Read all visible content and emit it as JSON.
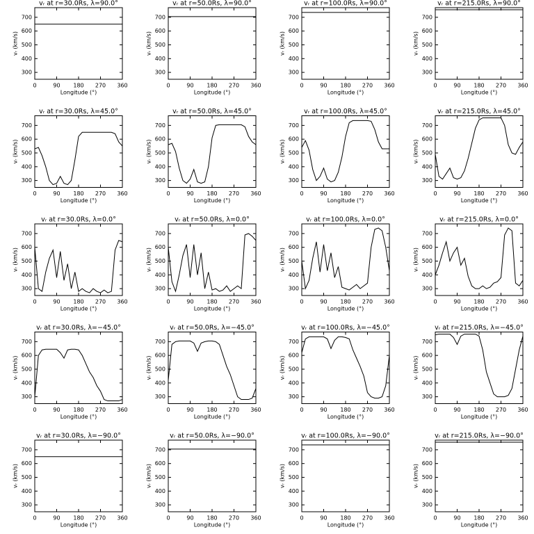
{
  "chart_data": [
    {
      "type": "line",
      "title": "vᵣ at r=30.0Rs, λ=90.0°",
      "xlabel": "Longitude (°)",
      "ylabel": "vᵣ (km/s)",
      "x": [
        0,
        360
      ],
      "values": [
        650,
        650
      ],
      "color": "#000000",
      "xlim": [
        0,
        360
      ],
      "ylim": [
        250,
        770
      ],
      "xticks": [
        0,
        90,
        180,
        270,
        360
      ],
      "yticks": [
        300,
        400,
        500,
        600,
        700
      ]
    },
    {
      "type": "line",
      "title": "vᵣ at r=50.0Rs, λ=90.0°",
      "xlabel": "Longitude (°)",
      "ylabel": "vᵣ (km/s)",
      "x": [
        0,
        360
      ],
      "values": [
        705,
        705
      ],
      "color": "#000000",
      "xlim": [
        0,
        360
      ],
      "ylim": [
        250,
        770
      ],
      "xticks": [
        0,
        90,
        180,
        270,
        360
      ],
      "yticks": [
        300,
        400,
        500,
        600,
        700
      ]
    },
    {
      "type": "line",
      "title": "vᵣ at r=100.0Rs, λ=90.0°",
      "xlabel": "Longitude (°)",
      "ylabel": "vᵣ (km/s)",
      "x": [
        0,
        360
      ],
      "values": [
        735,
        735
      ],
      "color": "#000000",
      "xlim": [
        0,
        360
      ],
      "ylim": [
        250,
        770
      ],
      "xticks": [
        0,
        90,
        180,
        270,
        360
      ],
      "yticks": [
        300,
        400,
        500,
        600,
        700
      ]
    },
    {
      "type": "line",
      "title": "vᵣ at r=215.0Rs, λ=90.0°",
      "xlabel": "Longitude (°)",
      "ylabel": "vᵣ (km/s)",
      "x": [
        0,
        360
      ],
      "values": [
        755,
        755
      ],
      "color": "#000000",
      "xlim": [
        0,
        360
      ],
      "ylim": [
        250,
        770
      ],
      "xticks": [
        0,
        90,
        180,
        270,
        360
      ],
      "yticks": [
        300,
        400,
        500,
        600,
        700
      ]
    },
    {
      "type": "line",
      "title": "vᵣ at r=30.0Rs, λ=45.0°",
      "xlabel": "Longitude (°)",
      "ylabel": "vᵣ (km/s)",
      "x": [
        0,
        15,
        30,
        45,
        60,
        75,
        90,
        105,
        120,
        135,
        150,
        165,
        180,
        195,
        210,
        225,
        240,
        255,
        270,
        285,
        300,
        315,
        330,
        345,
        360
      ],
      "values": [
        530,
        540,
        480,
        400,
        300,
        270,
        280,
        330,
        280,
        270,
        300,
        450,
        620,
        650,
        650,
        650,
        650,
        650,
        650,
        650,
        650,
        650,
        640,
        580,
        550
      ],
      "color": "#000000",
      "xlim": [
        0,
        360
      ],
      "ylim": [
        250,
        770
      ],
      "xticks": [
        0,
        90,
        180,
        270,
        360
      ],
      "yticks": [
        300,
        400,
        500,
        600,
        700
      ]
    },
    {
      "type": "line",
      "title": "vᵣ at r=50.0Rs, λ=45.0°",
      "xlabel": "Longitude (°)",
      "ylabel": "vᵣ (km/s)",
      "x": [
        0,
        15,
        30,
        45,
        60,
        75,
        90,
        105,
        120,
        135,
        150,
        165,
        180,
        195,
        210,
        225,
        240,
        255,
        270,
        285,
        300,
        315,
        330,
        345,
        360
      ],
      "values": [
        560,
        570,
        510,
        390,
        300,
        280,
        310,
        380,
        290,
        280,
        290,
        400,
        610,
        700,
        705,
        705,
        705,
        705,
        705,
        705,
        705,
        690,
        620,
        580,
        560
      ],
      "color": "#000000",
      "xlim": [
        0,
        360
      ],
      "ylim": [
        250,
        770
      ],
      "xticks": [
        0,
        90,
        180,
        270,
        360
      ],
      "yticks": [
        300,
        400,
        500,
        600,
        700
      ]
    },
    {
      "type": "line",
      "title": "vᵣ at r=100.0Rs, λ=45.0°",
      "xlabel": "Longitude (°)",
      "ylabel": "vᵣ (km/s)",
      "x": [
        0,
        15,
        30,
        45,
        60,
        75,
        90,
        105,
        120,
        135,
        150,
        165,
        180,
        195,
        210,
        225,
        240,
        255,
        270,
        285,
        300,
        315,
        330,
        345,
        360
      ],
      "values": [
        540,
        590,
        520,
        380,
        300,
        330,
        390,
        310,
        290,
        300,
        360,
        470,
        620,
        720,
        735,
        735,
        735,
        735,
        735,
        730,
        670,
        580,
        530,
        530,
        530
      ],
      "color": "#000000",
      "xlim": [
        0,
        360
      ],
      "ylim": [
        250,
        770
      ],
      "xticks": [
        0,
        90,
        180,
        270,
        360
      ],
      "yticks": [
        300,
        400,
        500,
        600,
        700
      ]
    },
    {
      "type": "line",
      "title": "vᵣ at r=215.0Rs, λ=45.0°",
      "xlabel": "Longitude (°)",
      "ylabel": "vᵣ (km/s)",
      "x": [
        0,
        15,
        30,
        45,
        60,
        75,
        90,
        105,
        120,
        135,
        150,
        165,
        180,
        195,
        210,
        225,
        240,
        255,
        270,
        285,
        300,
        315,
        330,
        345,
        360
      ],
      "values": [
        490,
        330,
        310,
        350,
        390,
        320,
        310,
        320,
        370,
        460,
        570,
        680,
        740,
        755,
        755,
        755,
        755,
        755,
        755,
        700,
        560,
        500,
        490,
        540,
        580
      ],
      "color": "#000000",
      "xlim": [
        0,
        360
      ],
      "ylim": [
        250,
        770
      ],
      "xticks": [
        0,
        90,
        180,
        270,
        360
      ],
      "yticks": [
        300,
        400,
        500,
        600,
        700
      ]
    },
    {
      "type": "line",
      "title": "vᵣ at r=30.0Rs, λ=0.0°",
      "xlabel": "Longitude (°)",
      "ylabel": "vᵣ (km/s)",
      "x": [
        0,
        15,
        30,
        45,
        60,
        75,
        90,
        105,
        120,
        135,
        150,
        165,
        180,
        195,
        210,
        225,
        240,
        255,
        270,
        285,
        300,
        315,
        330,
        345,
        360
      ],
      "values": [
        600,
        300,
        280,
        420,
        520,
        580,
        380,
        570,
        360,
        480,
        300,
        420,
        280,
        300,
        280,
        270,
        300,
        280,
        270,
        290,
        270,
        280,
        580,
        650,
        640
      ],
      "color": "#000000",
      "xlim": [
        0,
        360
      ],
      "ylim": [
        250,
        770
      ],
      "xticks": [
        0,
        90,
        180,
        270,
        360
      ],
      "yticks": [
        300,
        400,
        500,
        600,
        700
      ]
    },
    {
      "type": "line",
      "title": "vᵣ at r=50.0Rs, λ=0.0°",
      "xlabel": "Longitude (°)",
      "ylabel": "vᵣ (km/s)",
      "x": [
        0,
        15,
        30,
        45,
        60,
        75,
        90,
        105,
        120,
        135,
        150,
        165,
        180,
        195,
        210,
        225,
        240,
        255,
        270,
        285,
        300,
        315,
        330,
        345,
        360
      ],
      "values": [
        600,
        350,
        280,
        400,
        540,
        620,
        380,
        620,
        400,
        560,
        300,
        420,
        290,
        300,
        280,
        290,
        320,
        280,
        300,
        320,
        300,
        690,
        700,
        680,
        650
      ],
      "color": "#000000",
      "xlim": [
        0,
        360
      ],
      "ylim": [
        250,
        770
      ],
      "xticks": [
        0,
        90,
        180,
        270,
        360
      ],
      "yticks": [
        300,
        400,
        500,
        600,
        700
      ]
    },
    {
      "type": "line",
      "title": "vᵣ at r=100.0Rs, λ=0.0°",
      "xlabel": "Longitude (°)",
      "ylabel": "vᵣ (km/s)",
      "x": [
        0,
        15,
        30,
        45,
        60,
        75,
        90,
        105,
        120,
        135,
        150,
        165,
        180,
        195,
        210,
        225,
        240,
        255,
        270,
        285,
        300,
        315,
        330,
        345,
        360
      ],
      "values": [
        500,
        300,
        360,
        520,
        640,
        420,
        620,
        430,
        560,
        380,
        460,
        310,
        300,
        290,
        310,
        330,
        300,
        320,
        340,
        600,
        730,
        740,
        720,
        600,
        430
      ],
      "color": "#000000",
      "xlim": [
        0,
        360
      ],
      "ylim": [
        250,
        770
      ],
      "xticks": [
        0,
        90,
        180,
        270,
        360
      ],
      "yticks": [
        300,
        400,
        500,
        600,
        700
      ]
    },
    {
      "type": "line",
      "title": "vᵣ at r=215.0Rs, λ=0.0°",
      "xlabel": "Longitude (°)",
      "ylabel": "vᵣ (km/s)",
      "x": [
        0,
        15,
        30,
        45,
        60,
        75,
        90,
        105,
        120,
        135,
        150,
        165,
        180,
        195,
        210,
        225,
        240,
        255,
        270,
        285,
        300,
        315,
        330,
        345,
        360
      ],
      "values": [
        400,
        470,
        560,
        640,
        500,
        560,
        600,
        470,
        520,
        390,
        320,
        300,
        300,
        320,
        300,
        310,
        340,
        350,
        380,
        690,
        740,
        720,
        340,
        320,
        360
      ],
      "color": "#000000",
      "xlim": [
        0,
        360
      ],
      "ylim": [
        250,
        770
      ],
      "xticks": [
        0,
        90,
        180,
        270,
        360
      ],
      "yticks": [
        300,
        400,
        500,
        600,
        700
      ]
    },
    {
      "type": "line",
      "title": "vᵣ at r=30.0Rs, λ=−45.0°",
      "xlabel": "Longitude (°)",
      "ylabel": "vᵣ (km/s)",
      "x": [
        0,
        15,
        30,
        45,
        60,
        75,
        90,
        105,
        120,
        135,
        150,
        165,
        180,
        195,
        210,
        225,
        240,
        255,
        270,
        285,
        300,
        315,
        330,
        345,
        360
      ],
      "values": [
        300,
        600,
        640,
        645,
        645,
        645,
        645,
        620,
        580,
        640,
        645,
        645,
        640,
        600,
        540,
        480,
        440,
        380,
        340,
        280,
        270,
        270,
        270,
        270,
        280
      ],
      "color": "#000000",
      "xlim": [
        0,
        360
      ],
      "ylim": [
        250,
        770
      ],
      "xticks": [
        0,
        90,
        180,
        270,
        360
      ],
      "yticks": [
        300,
        400,
        500,
        600,
        700
      ]
    },
    {
      "type": "line",
      "title": "vᵣ at r=50.0Rs, λ=−45.0°",
      "xlabel": "Longitude (°)",
      "ylabel": "vᵣ (km/s)",
      "x": [
        0,
        15,
        30,
        45,
        60,
        75,
        90,
        105,
        120,
        135,
        150,
        165,
        180,
        195,
        210,
        225,
        240,
        255,
        270,
        285,
        300,
        315,
        330,
        345,
        360
      ],
      "values": [
        420,
        680,
        700,
        705,
        705,
        705,
        705,
        690,
        630,
        690,
        700,
        705,
        705,
        700,
        680,
        600,
        520,
        460,
        380,
        300,
        280,
        280,
        280,
        290,
        360
      ],
      "color": "#000000",
      "xlim": [
        0,
        360
      ],
      "ylim": [
        250,
        770
      ],
      "xticks": [
        0,
        90,
        180,
        270,
        360
      ],
      "yticks": [
        300,
        400,
        500,
        600,
        700
      ]
    },
    {
      "type": "line",
      "title": "vᵣ at r=100.0Rs, λ=−45.0°",
      "xlabel": "Longitude (°)",
      "ylabel": "vᵣ (km/s)",
      "x": [
        0,
        15,
        30,
        45,
        60,
        75,
        90,
        105,
        120,
        135,
        150,
        165,
        180,
        195,
        210,
        225,
        240,
        255,
        270,
        285,
        300,
        315,
        330,
        345,
        360
      ],
      "values": [
        620,
        720,
        735,
        735,
        735,
        735,
        735,
        720,
        650,
        710,
        735,
        735,
        730,
        720,
        640,
        580,
        520,
        450,
        330,
        300,
        290,
        290,
        300,
        380,
        600
      ],
      "color": "#000000",
      "xlim": [
        0,
        360
      ],
      "ylim": [
        250,
        770
      ],
      "xticks": [
        0,
        90,
        180,
        270,
        360
      ],
      "yticks": [
        300,
        400,
        500,
        600,
        700
      ]
    },
    {
      "type": "line",
      "title": "vᵣ at r=215.0Rs, λ=−45.0°",
      "xlabel": "Longitude (°)",
      "ylabel": "vᵣ (km/s)",
      "x": [
        0,
        15,
        30,
        45,
        60,
        75,
        90,
        105,
        120,
        135,
        150,
        165,
        180,
        195,
        210,
        225,
        240,
        255,
        270,
        285,
        300,
        315,
        330,
        345,
        360
      ],
      "values": [
        750,
        755,
        755,
        755,
        755,
        730,
        680,
        740,
        755,
        755,
        755,
        755,
        740,
        640,
        480,
        400,
        320,
        300,
        300,
        300,
        310,
        360,
        500,
        640,
        740
      ],
      "color": "#000000",
      "xlim": [
        0,
        360
      ],
      "ylim": [
        250,
        770
      ],
      "xticks": [
        0,
        90,
        180,
        270,
        360
      ],
      "yticks": [
        300,
        400,
        500,
        600,
        700
      ]
    },
    {
      "type": "line",
      "title": "vᵣ at r=30.0Rs, λ=−90.0°",
      "xlabel": "Longitude (°)",
      "ylabel": "vᵣ (km/s)",
      "x": [
        0,
        360
      ],
      "values": [
        650,
        650
      ],
      "color": "#000000",
      "xlim": [
        0,
        360
      ],
      "ylim": [
        250,
        770
      ],
      "xticks": [
        0,
        90,
        180,
        270,
        360
      ],
      "yticks": [
        300,
        400,
        500,
        600,
        700
      ]
    },
    {
      "type": "line",
      "title": "vᵣ at r=50.0Rs, λ=−90.0°",
      "xlabel": "Longitude (°)",
      "ylabel": "vᵣ (km/s)",
      "x": [
        0,
        360
      ],
      "values": [
        705,
        705
      ],
      "color": "#000000",
      "xlim": [
        0,
        360
      ],
      "ylim": [
        250,
        770
      ],
      "xticks": [
        0,
        90,
        180,
        270,
        360
      ],
      "yticks": [
        300,
        400,
        500,
        600,
        700
      ]
    },
    {
      "type": "line",
      "title": "vᵣ at r=100.0Rs, λ=−90.0°",
      "xlabel": "Longitude (°)",
      "ylabel": "vᵣ (km/s)",
      "x": [
        0,
        360
      ],
      "values": [
        735,
        735
      ],
      "color": "#000000",
      "xlim": [
        0,
        360
      ],
      "ylim": [
        250,
        770
      ],
      "xticks": [
        0,
        90,
        180,
        270,
        360
      ],
      "yticks": [
        300,
        400,
        500,
        600,
        700
      ]
    },
    {
      "type": "line",
      "title": "vᵣ at r=215.0Rs, λ=−90.0°",
      "xlabel": "Longitude (°)",
      "ylabel": "vᵣ (km/s)",
      "x": [
        0,
        360
      ],
      "values": [
        755,
        755
      ],
      "color": "#000000",
      "xlim": [
        0,
        360
      ],
      "ylim": [
        250,
        770
      ],
      "xticks": [
        0,
        90,
        180,
        270,
        360
      ],
      "yticks": [
        300,
        400,
        500,
        600,
        700
      ]
    }
  ]
}
